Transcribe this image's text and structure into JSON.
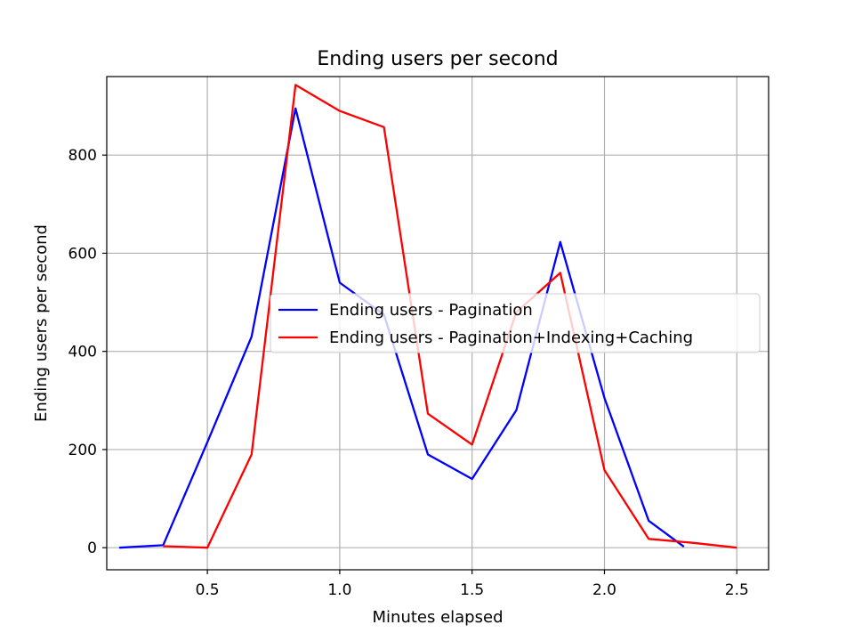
{
  "chart_data": {
    "type": "line",
    "title": "Ending users per second",
    "xlabel": "Minutes elapsed",
    "ylabel": "Ending users per second",
    "xlim": [
      0.12,
      2.62
    ],
    "ylim": [
      -45,
      960
    ],
    "xticks": [
      0.5,
      1.0,
      1.5,
      2.0,
      2.5
    ],
    "xtick_labels": [
      "0.5",
      "1.0",
      "1.5",
      "2.0",
      "2.5"
    ],
    "yticks": [
      0,
      200,
      400,
      600,
      800
    ],
    "ytick_labels": [
      "0",
      "200",
      "400",
      "600",
      "800"
    ],
    "grid": true,
    "legend_position": "center-right",
    "series": [
      {
        "name": "Ending users - Pagination",
        "color": "#0000ff",
        "x": [
          0.167,
          0.333,
          0.5,
          0.667,
          0.833,
          1.0,
          1.167,
          1.333,
          1.5,
          1.667,
          1.833,
          2.0,
          2.167,
          2.3
        ],
        "y": [
          0,
          5,
          215,
          430,
          895,
          540,
          475,
          190,
          140,
          280,
          623,
          305,
          55,
          2
        ]
      },
      {
        "name": "Ending users - Pagination+Indexing+Caching",
        "color": "#ff0000",
        "x": [
          0.333,
          0.5,
          0.667,
          0.833,
          1.0,
          1.167,
          1.333,
          1.5,
          1.667,
          1.833,
          2.0,
          2.167,
          2.333,
          2.5
        ],
        "y": [
          3,
          0,
          190,
          943,
          890,
          857,
          273,
          210,
          480,
          560,
          158,
          18,
          10,
          0
        ]
      }
    ]
  }
}
